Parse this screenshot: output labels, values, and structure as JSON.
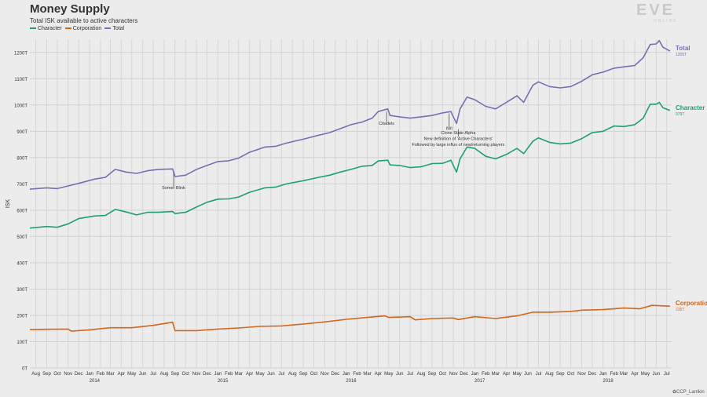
{
  "header": {
    "title": "Money Supply",
    "subtitle": "Total ISK available to active characters"
  },
  "logo": {
    "main": "EVE",
    "sub": "ONLINE"
  },
  "credit": "CCP_Larrikin",
  "colors": {
    "character": "#1f9e77",
    "corporation": "#d5661b",
    "total": "#7570b3",
    "background": "#ececec"
  },
  "chart_data": {
    "type": "line",
    "ylabel": "ISK",
    "ylim": [
      0,
      1250
    ],
    "yticks": [
      {
        "value": 0,
        "label": "0T"
      },
      {
        "value": 100,
        "label": "100T"
      },
      {
        "value": 200,
        "label": "200T"
      },
      {
        "value": 300,
        "label": "300T"
      },
      {
        "value": 400,
        "label": "400T"
      },
      {
        "value": 500,
        "label": "500T"
      },
      {
        "value": 600,
        "label": "600T"
      },
      {
        "value": 700,
        "label": "700T"
      },
      {
        "value": 800,
        "label": "800T"
      },
      {
        "value": 900,
        "label": "900T"
      },
      {
        "value": 1000,
        "label": "1000T"
      },
      {
        "value": 1100,
        "label": "1100T"
      },
      {
        "value": 1200,
        "label": "1200T"
      }
    ],
    "xlim": [
      "2013-07-15",
      "2018-07-15"
    ],
    "month_labels": [
      "Aug",
      "Sep",
      "Oct",
      "Nov",
      "Dec",
      "Jan",
      "Feb",
      "Mar",
      "Apr",
      "May",
      "Jun",
      "Jul",
      "Aug",
      "Sep",
      "Oct",
      "Nov",
      "Dec",
      "Jan",
      "Feb",
      "Mar",
      "Apr",
      "May",
      "Jun",
      "Jul",
      "Aug",
      "Sep",
      "Oct",
      "Nov",
      "Dec",
      "Jan",
      "Feb",
      "Mar",
      "Apr",
      "May",
      "Jun",
      "Jul",
      "Aug",
      "Sep",
      "Oct",
      "Nov",
      "Dec",
      "Jan",
      "Feb",
      "Mar",
      "Apr",
      "May",
      "Jun",
      "Jul",
      "Aug",
      "Sep",
      "Oct",
      "Nov",
      "Dec",
      "Jan",
      "Feb",
      "Mar",
      "Apr",
      "May",
      "Jun",
      "Jul"
    ],
    "month_start": "2013-08-01",
    "year_labels": [
      {
        "label": "2014",
        "date": "2014-01-15"
      },
      {
        "label": "2015",
        "date": "2015-01-15"
      },
      {
        "label": "2016",
        "date": "2016-01-15"
      },
      {
        "label": "2017",
        "date": "2017-01-15"
      },
      {
        "label": "2018",
        "date": "2018-01-15"
      }
    ],
    "series": [
      {
        "name": "Character",
        "key": "character",
        "end_label": "Character",
        "end_value": "979T",
        "points": [
          [
            "2013-07-15",
            532
          ],
          [
            "2013-09-01",
            538
          ],
          [
            "2013-10-01",
            535
          ],
          [
            "2013-11-01",
            548
          ],
          [
            "2013-12-01",
            568
          ],
          [
            "2014-01-15",
            578
          ],
          [
            "2014-02-15",
            580
          ],
          [
            "2014-03-15",
            603
          ],
          [
            "2014-04-15",
            593
          ],
          [
            "2014-05-15",
            582
          ],
          [
            "2014-06-15",
            592
          ],
          [
            "2014-07-15",
            592
          ],
          [
            "2014-08-25",
            595
          ],
          [
            "2014-09-01",
            587
          ],
          [
            "2014-10-01",
            592
          ],
          [
            "2014-11-01",
            612
          ],
          [
            "2014-12-01",
            630
          ],
          [
            "2015-01-01",
            642
          ],
          [
            "2015-02-01",
            643
          ],
          [
            "2015-03-01",
            650
          ],
          [
            "2015-04-01",
            668
          ],
          [
            "2015-05-15",
            685
          ],
          [
            "2015-06-15",
            688
          ],
          [
            "2015-07-15",
            700
          ],
          [
            "2015-09-01",
            712
          ],
          [
            "2015-10-15",
            725
          ],
          [
            "2015-11-15",
            733
          ],
          [
            "2015-12-15",
            745
          ],
          [
            "2016-01-15",
            755
          ],
          [
            "2016-02-15",
            767
          ],
          [
            "2016-03-15",
            770
          ],
          [
            "2016-04-01",
            787
          ],
          [
            "2016-04-28",
            790
          ],
          [
            "2016-05-05",
            772
          ],
          [
            "2016-06-01",
            770
          ],
          [
            "2016-07-01",
            762
          ],
          [
            "2016-08-01",
            765
          ],
          [
            "2016-09-01",
            777
          ],
          [
            "2016-10-01",
            778
          ],
          [
            "2016-10-25",
            790
          ],
          [
            "2016-11-01",
            770
          ],
          [
            "2016-11-10",
            745
          ],
          [
            "2016-11-20",
            795
          ],
          [
            "2016-12-10",
            840
          ],
          [
            "2017-01-01",
            835
          ],
          [
            "2017-02-01",
            805
          ],
          [
            "2017-03-01",
            795
          ],
          [
            "2017-04-01",
            812
          ],
          [
            "2017-05-01",
            835
          ],
          [
            "2017-05-20",
            815
          ],
          [
            "2017-06-15",
            862
          ],
          [
            "2017-07-01",
            875
          ],
          [
            "2017-08-01",
            858
          ],
          [
            "2017-09-01",
            852
          ],
          [
            "2017-10-01",
            855
          ],
          [
            "2017-11-01",
            872
          ],
          [
            "2017-12-01",
            895
          ],
          [
            "2018-01-01",
            900
          ],
          [
            "2018-02-01",
            920
          ],
          [
            "2018-03-01",
            918
          ],
          [
            "2018-04-01",
            925
          ],
          [
            "2018-04-25",
            950
          ],
          [
            "2018-05-15",
            1003
          ],
          [
            "2018-06-01",
            1003
          ],
          [
            "2018-06-10",
            1010
          ],
          [
            "2018-06-20",
            990
          ],
          [
            "2018-07-10",
            979
          ]
        ]
      },
      {
        "name": "Corporation",
        "key": "corporation",
        "end_label": "Corporation",
        "end_value": "235T",
        "points": [
          [
            "2013-07-15",
            146
          ],
          [
            "2013-09-01",
            147
          ],
          [
            "2013-11-01",
            148
          ],
          [
            "2013-11-10",
            140
          ],
          [
            "2014-01-01",
            145
          ],
          [
            "2014-03-01",
            153
          ],
          [
            "2014-05-01",
            153
          ],
          [
            "2014-07-01",
            162
          ],
          [
            "2014-08-25",
            174
          ],
          [
            "2014-09-01",
            142
          ],
          [
            "2014-11-01",
            142
          ],
          [
            "2015-01-01",
            148
          ],
          [
            "2015-03-01",
            152
          ],
          [
            "2015-05-01",
            158
          ],
          [
            "2015-07-01",
            160
          ],
          [
            "2015-09-01",
            167
          ],
          [
            "2015-11-01",
            175
          ],
          [
            "2016-01-01",
            185
          ],
          [
            "2016-03-01",
            192
          ],
          [
            "2016-04-20",
            198
          ],
          [
            "2016-05-01",
            192
          ],
          [
            "2016-07-01",
            195
          ],
          [
            "2016-07-15",
            183
          ],
          [
            "2016-09-01",
            188
          ],
          [
            "2016-11-01",
            190
          ],
          [
            "2016-11-15",
            184
          ],
          [
            "2017-01-01",
            195
          ],
          [
            "2017-03-01",
            188
          ],
          [
            "2017-05-01",
            198
          ],
          [
            "2017-06-15",
            212
          ],
          [
            "2017-08-01",
            212
          ],
          [
            "2017-10-01",
            215
          ],
          [
            "2017-11-01",
            220
          ],
          [
            "2018-01-01",
            222
          ],
          [
            "2018-03-01",
            228
          ],
          [
            "2018-04-15",
            225
          ],
          [
            "2018-05-20",
            238
          ],
          [
            "2018-07-10",
            235
          ]
        ]
      },
      {
        "name": "Total",
        "key": "total",
        "end_label": "Total",
        "end_value": "1205T",
        "points": [
          [
            "2013-07-15",
            680
          ],
          [
            "2013-09-01",
            685
          ],
          [
            "2013-10-01",
            682
          ],
          [
            "2013-11-01",
            692
          ],
          [
            "2013-12-01",
            702
          ],
          [
            "2014-01-15",
            718
          ],
          [
            "2014-02-15",
            725
          ],
          [
            "2014-03-15",
            755
          ],
          [
            "2014-04-15",
            745
          ],
          [
            "2014-05-15",
            740
          ],
          [
            "2014-06-15",
            750
          ],
          [
            "2014-07-15",
            755
          ],
          [
            "2014-08-25",
            757
          ],
          [
            "2014-09-01",
            728
          ],
          [
            "2014-10-01",
            733
          ],
          [
            "2014-11-01",
            755
          ],
          [
            "2014-12-01",
            770
          ],
          [
            "2015-01-01",
            785
          ],
          [
            "2015-02-01",
            788
          ],
          [
            "2015-03-01",
            798
          ],
          [
            "2015-04-01",
            820
          ],
          [
            "2015-05-15",
            840
          ],
          [
            "2015-06-15",
            843
          ],
          [
            "2015-07-15",
            855
          ],
          [
            "2015-09-01",
            870
          ],
          [
            "2015-10-15",
            885
          ],
          [
            "2015-11-15",
            895
          ],
          [
            "2015-12-15",
            910
          ],
          [
            "2016-01-15",
            925
          ],
          [
            "2016-02-15",
            935
          ],
          [
            "2016-03-15",
            950
          ],
          [
            "2016-04-01",
            975
          ],
          [
            "2016-04-28",
            985
          ],
          [
            "2016-05-05",
            960
          ],
          [
            "2016-06-01",
            955
          ],
          [
            "2016-07-01",
            950
          ],
          [
            "2016-08-01",
            955
          ],
          [
            "2016-09-01",
            960
          ],
          [
            "2016-10-01",
            970
          ],
          [
            "2016-10-25",
            975
          ],
          [
            "2016-11-01",
            955
          ],
          [
            "2016-11-10",
            930
          ],
          [
            "2016-11-20",
            985
          ],
          [
            "2016-12-10",
            1030
          ],
          [
            "2017-01-01",
            1020
          ],
          [
            "2017-02-01",
            995
          ],
          [
            "2017-03-01",
            985
          ],
          [
            "2017-04-01",
            1010
          ],
          [
            "2017-05-01",
            1035
          ],
          [
            "2017-05-20",
            1010
          ],
          [
            "2017-06-15",
            1075
          ],
          [
            "2017-07-01",
            1088
          ],
          [
            "2017-08-01",
            1070
          ],
          [
            "2017-09-01",
            1065
          ],
          [
            "2017-10-01",
            1070
          ],
          [
            "2017-11-01",
            1090
          ],
          [
            "2017-12-01",
            1115
          ],
          [
            "2018-01-01",
            1125
          ],
          [
            "2018-02-01",
            1140
          ],
          [
            "2018-03-01",
            1145
          ],
          [
            "2018-04-01",
            1150
          ],
          [
            "2018-04-25",
            1180
          ],
          [
            "2018-05-15",
            1230
          ],
          [
            "2018-06-01",
            1232
          ],
          [
            "2018-06-10",
            1245
          ],
          [
            "2018-06-20",
            1220
          ],
          [
            "2018-07-10",
            1205
          ]
        ]
      }
    ],
    "annotations": [
      {
        "lines": [
          "Somer Blink"
        ],
        "date": "2014-08-28",
        "value": 745,
        "text_value": 680
      },
      {
        "lines": [
          "Citadels"
        ],
        "date": "2016-04-25",
        "value": 975,
        "text_value": 925
      },
      {
        "lines": [
          "IWI"
        ],
        "date": "2016-10-20",
        "value": 968,
        "text_value": 905
      },
      {
        "lines": [
          "Clone State Alpha",
          "New definition of 'Active Characters'",
          "Followed by large influx of new/returning players"
        ],
        "date": "2016-11-15",
        "value": 880,
        "text_value": 845
      }
    ]
  }
}
